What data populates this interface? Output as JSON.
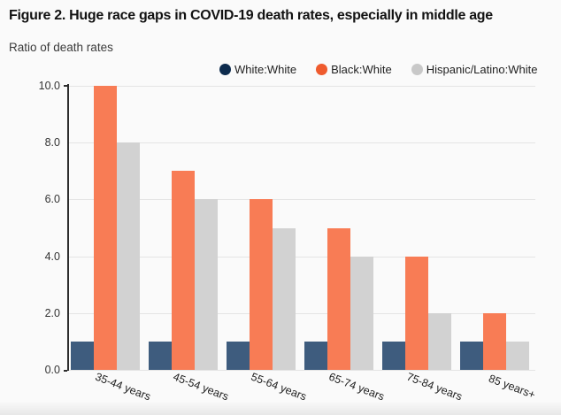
{
  "page": {
    "title": "Figure 2. Huge race gaps in COVID-19 death rates, especially in middle age",
    "subtitle": "Ratio of death rates"
  },
  "chart_data": {
    "type": "bar",
    "title": "Figure 2. Huge race gaps in COVID-19 death rates, especially in middle age",
    "ylabel": "Ratio of death rates",
    "xlabel": "",
    "categories": [
      "35-44 years",
      "45-54 years",
      "55-64 years",
      "65-74 years",
      "75-84 years",
      "85 years+"
    ],
    "series": [
      {
        "name": "White:White",
        "values": [
          1,
          1,
          1,
          1,
          1,
          1
        ],
        "legend_color": "#0d2b4d",
        "bar_color": "#3e5c7e"
      },
      {
        "name": "Black:White",
        "values": [
          10,
          7,
          6,
          5,
          4,
          2
        ],
        "legend_color": "#ef5b2e",
        "bar_color": "#f87c55"
      },
      {
        "name": "Hispanic/Latino:White",
        "values": [
          8,
          6,
          5,
          4,
          2,
          1
        ],
        "legend_color": "#c8c8c8",
        "bar_color": "#d2d2d2"
      }
    ],
    "ylim": [
      0,
      10
    ],
    "yticks": [
      "0.0",
      "2.0",
      "4.0",
      "6.0",
      "8.0",
      "10.0"
    ],
    "grid": true,
    "legend_position": "top-center",
    "colors": {
      "grid": "#e4e4e4",
      "axis": "#2d2d2d",
      "background": "#fafafa",
      "text": "#222222"
    }
  }
}
